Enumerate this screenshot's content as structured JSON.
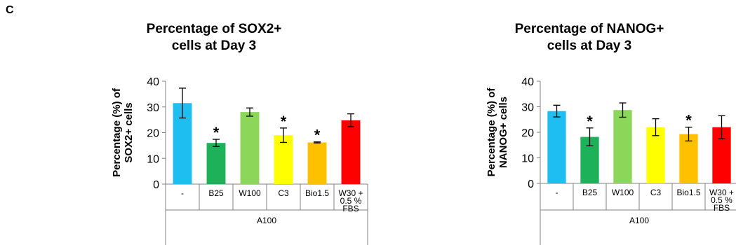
{
  "panel_label": "C",
  "chart_data": [
    {
      "type": "bar",
      "title_line1": "Percentage of SOX2+",
      "title_line2": "cells at Day 3",
      "ylabel_line1": "Percentage (%) of",
      "ylabel_line2": "SOX2+ cells",
      "ylim": [
        0,
        40
      ],
      "yticks": [
        0,
        10,
        20,
        30,
        40
      ],
      "categories": [
        "-",
        "B25",
        "W100",
        "C3",
        "Bio1.5",
        "W30 + 0.5 % FBS"
      ],
      "category_lines": [
        [
          "-"
        ],
        [
          "B25"
        ],
        [
          "W100"
        ],
        [
          "C3"
        ],
        [
          "Bio1.5"
        ],
        [
          "W30 +",
          "0.5 %",
          "FBS"
        ]
      ],
      "group_label": "A100",
      "values": [
        31.5,
        16.0,
        28.0,
        19.0,
        16.2,
        24.8
      ],
      "errors": [
        5.8,
        1.4,
        1.6,
        2.8,
        0.2,
        2.5
      ],
      "significant": [
        false,
        true,
        false,
        true,
        true,
        false
      ],
      "significance_marker": "*",
      "colors": [
        "#1fbef0",
        "#1db15a",
        "#8cd65a",
        "#ffff00",
        "#ffc000",
        "#ff0000"
      ],
      "grid": false
    },
    {
      "type": "bar",
      "title_line1": "Percentage of NANOG+",
      "title_line2": "cells at Day 3",
      "ylabel_line1": "Percentage (%) of",
      "ylabel_line2": "NANOG+ cells",
      "ylim": [
        0,
        40
      ],
      "yticks": [
        0,
        10,
        20,
        30,
        40
      ],
      "categories": [
        "-",
        "B25",
        "W100",
        "C3",
        "Bio1.5",
        "W30 + 0.5 % FBS"
      ],
      "category_lines": [
        [
          "-"
        ],
        [
          "B25"
        ],
        [
          "W100"
        ],
        [
          "C3"
        ],
        [
          "Bio1.5"
        ],
        [
          "W30 +",
          "0.5 %",
          "FBS"
        ]
      ],
      "group_label": "A100",
      "values": [
        28.3,
        18.2,
        28.7,
        22.0,
        19.3,
        22.0
      ],
      "errors": [
        2.3,
        3.5,
        2.8,
        3.3,
        2.7,
        4.5
      ],
      "significant": [
        false,
        true,
        false,
        false,
        true,
        false
      ],
      "significance_marker": "*",
      "colors": [
        "#1fbef0",
        "#1db15a",
        "#8cd65a",
        "#ffff00",
        "#ffc000",
        "#ff0000"
      ],
      "grid": false
    }
  ]
}
